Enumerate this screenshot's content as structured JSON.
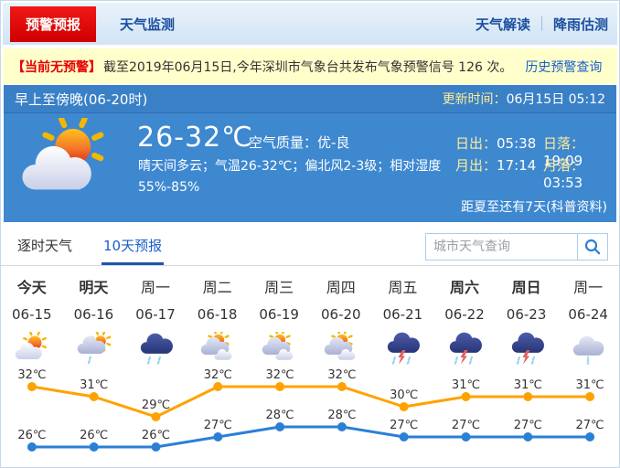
{
  "nav": {
    "warning_tab": "预警预报",
    "monitor_tab": "天气监测",
    "interpret_link": "天气解读",
    "rain_estimate_link": "降雨估测"
  },
  "notice": {
    "badge": "【当前无预警】",
    "text": "截至2019年06月15日,今年深圳市气象台共发布气象预警信号 126 次。",
    "history_link": "历史预警查询"
  },
  "current": {
    "period": "早上至傍晚(06-20时)",
    "update_label": "更新时间：",
    "update_value": "06月15日 05:12",
    "temp_range": "26-32℃",
    "aqi_label": "空气质量：",
    "aqi_value": "优-良",
    "description": "晴天间多云；气温26-32℃；偏北风2-3级；相对湿度55%-85%",
    "sunrise_label": "日出：",
    "sunrise_value": "05:38",
    "sunset_label": "日落：",
    "sunset_value": "19:09",
    "moonrise_label": "月出：",
    "moonrise_value": "17:14",
    "moonset_label": "月落：",
    "moonset_value": "03:53",
    "solstice_note": "距夏至还有7天(科普资料)",
    "icon": "sun-cloud"
  },
  "tabs": {
    "hourly": "逐时天气",
    "ten_day": "10天预报"
  },
  "search": {
    "placeholder": "城市天气查询",
    "icon": "search-icon"
  },
  "forecast": {
    "days": [
      {
        "label": "今天",
        "date": "06-15",
        "icon": "sun-cloud",
        "bold": true
      },
      {
        "label": "明天",
        "date": "06-16",
        "icon": "cloud-sun-drizzle",
        "bold": true
      },
      {
        "label": "周一",
        "date": "06-17",
        "icon": "rain",
        "bold": false
      },
      {
        "label": "周二",
        "date": "06-18",
        "icon": "sun-clouds",
        "bold": false
      },
      {
        "label": "周三",
        "date": "06-19",
        "icon": "sun-clouds",
        "bold": false
      },
      {
        "label": "周四",
        "date": "06-20",
        "icon": "sun-clouds",
        "bold": false
      },
      {
        "label": "周五",
        "date": "06-21",
        "icon": "thunderstorm",
        "bold": false
      },
      {
        "label": "周六",
        "date": "06-22",
        "icon": "thunderstorm",
        "bold": true
      },
      {
        "label": "周日",
        "date": "06-23",
        "icon": "thunderstorm",
        "bold": true
      },
      {
        "label": "周一",
        "date": "06-24",
        "icon": "light-rain",
        "bold": false
      }
    ]
  },
  "chart_data": {
    "type": "line",
    "categories": [
      "06-15",
      "06-16",
      "06-17",
      "06-18",
      "06-19",
      "06-20",
      "06-21",
      "06-22",
      "06-23",
      "06-24"
    ],
    "series": [
      {
        "name": "high",
        "color": "#ffa200",
        "values": [
          32,
          31,
          29,
          32,
          32,
          32,
          30,
          31,
          31,
          31
        ]
      },
      {
        "name": "low",
        "color": "#2b7fd4",
        "values": [
          26,
          26,
          26,
          27,
          28,
          28,
          27,
          27,
          27,
          27
        ]
      }
    ],
    "unit": "℃",
    "ylim": [
      25,
      33
    ],
    "grid": false,
    "legend": "none"
  },
  "colors": {
    "panel_blue": "#3e88d0",
    "nav_text": "#1c4fa0",
    "warn_red": "#e60000",
    "link_blue": "#1a5ec7",
    "high_line": "#ffa200",
    "low_line": "#2b7fd4"
  }
}
